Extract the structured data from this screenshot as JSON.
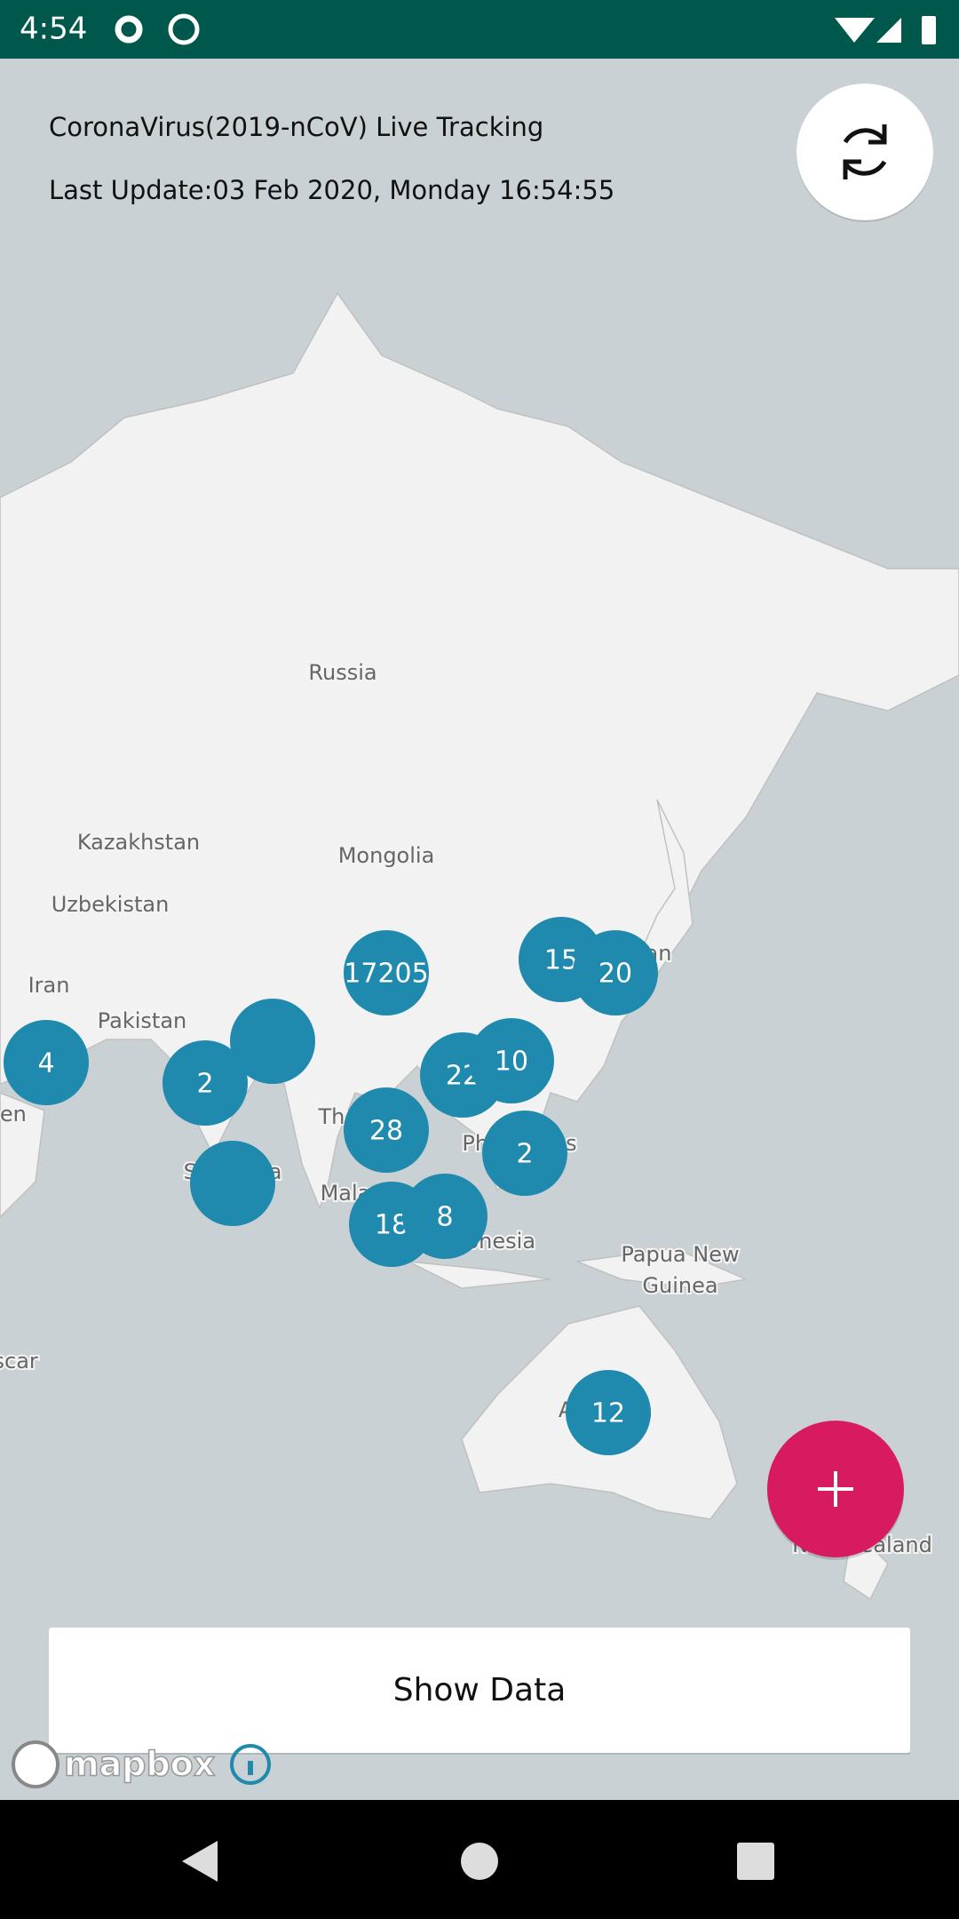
{
  "status_bar": {
    "time": "4:54"
  },
  "header": {
    "title": "CoronaVirus(2019-nCoV) Live Tracking",
    "last_update": "Last Update:03 Feb 2020, Monday 16:54:55"
  },
  "map": {
    "labels": [
      "Russia",
      "Kazakhstan",
      "Mongolia",
      "Uzbekistan",
      "Iran",
      "Pakistan",
      "Yemen",
      "Sri Lanka",
      "Thailand",
      "Malaysia",
      "Philippines",
      "Indonesia",
      "Papua New",
      "Guinea",
      "Madagascar",
      "Australia",
      "New Zealand",
      "Japan"
    ],
    "clusters": [
      17205,
      15,
      20,
      4,
      2,
      22,
      10,
      28,
      2,
      18,
      8,
      12
    ],
    "attribution": "mapbox"
  },
  "button": {
    "label": "Show Data"
  }
}
